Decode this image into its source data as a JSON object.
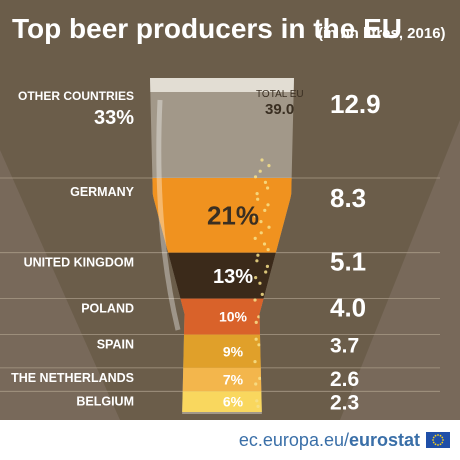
{
  "title": "Top beer producers in the EU",
  "subtitle": "(in bn litres, 2016)",
  "total_label": "TOTAL EU",
  "total_value": "39.0",
  "footer": {
    "domain": "ec.europa.eu/",
    "brand": "eurostat"
  },
  "colors": {
    "background": "#6b5d4a",
    "stripe": "#78695a",
    "glass": "#cfc8bd",
    "foam": "#e9e4dc",
    "text": "#ffffff",
    "dark_text": "#3a2f22"
  },
  "chart_data": {
    "type": "bar",
    "unit": "bn litres",
    "year": "2016",
    "categories": [
      "OTHER COUNTRIES",
      "GERMANY",
      "UNITED KINGDOM",
      "POLAND",
      "SPAIN",
      "THE NETHERLANDS",
      "BELGIUM"
    ],
    "values": [
      12.9,
      8.3,
      5.1,
      4.0,
      3.7,
      2.6,
      2.3
    ],
    "value_labels": [
      "12.9",
      "8.3",
      "5.1",
      "4.0",
      "3.7",
      "2.6",
      "2.3"
    ],
    "shares": [
      "33%",
      "21%",
      "13%",
      "10%",
      "9%",
      "7%",
      "6%"
    ],
    "layer_colors": [
      "#d8d2c8",
      "#f0921f",
      "#3b2a1a",
      "#d9622a",
      "#e0a02a",
      "#f3b64c",
      "#f9d75e"
    ],
    "total": 39.0
  }
}
